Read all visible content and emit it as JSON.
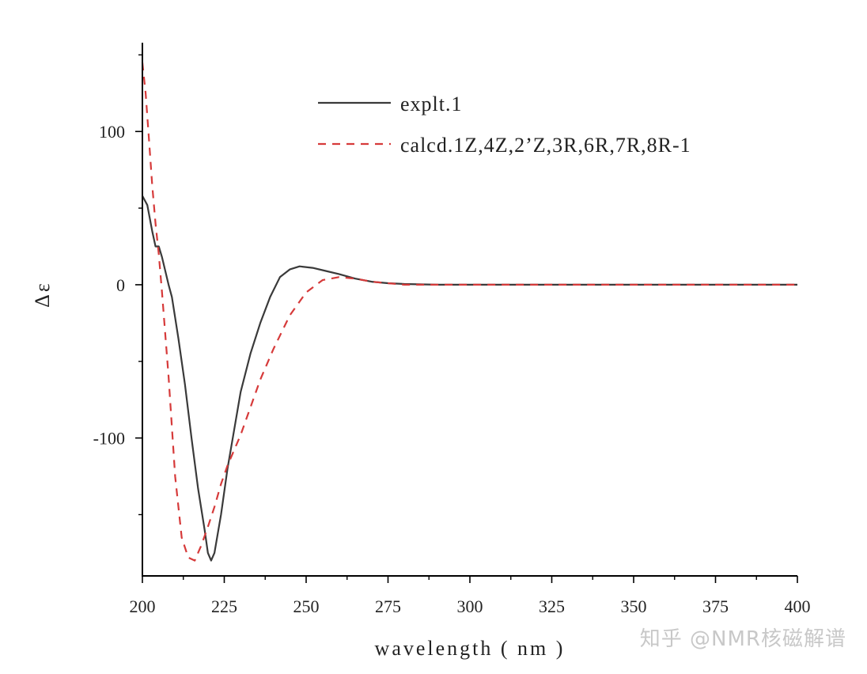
{
  "chart_data": {
    "type": "line",
    "xlabel": "wavelength ( nm )",
    "ylabel": "Δε",
    "xlim": [
      200,
      400
    ],
    "ylim": [
      -190,
      160
    ],
    "xticks": [
      200,
      225,
      250,
      275,
      300,
      325,
      350,
      375,
      400
    ],
    "yticks": [
      -100,
      0,
      100
    ],
    "grid": false,
    "legend_position": "top-right",
    "series": [
      {
        "name": "explt.1",
        "color": "#3a3a3a",
        "dash": "solid",
        "x": [
          200,
          201.5,
          203,
          204,
          205,
          206,
          208,
          209,
          211,
          213,
          215,
          217,
          219,
          220,
          221,
          222,
          224,
          226,
          228,
          230,
          233,
          236,
          239,
          242,
          245,
          248,
          252,
          256,
          260,
          265,
          270,
          275,
          280,
          290,
          300,
          320,
          350,
          400
        ],
        "y": [
          58,
          52,
          35,
          25,
          25,
          18,
          0,
          -8,
          -35,
          -65,
          -100,
          -133,
          -160,
          -175,
          -180,
          -175,
          -150,
          -120,
          -95,
          -70,
          -45,
          -25,
          -8,
          5,
          10,
          12,
          11,
          9,
          7,
          4,
          2,
          1,
          0.5,
          0,
          0,
          0,
          0,
          0
        ]
      },
      {
        "name": "calcd.1Z,4Z,2’Z,3R,6R,7R,8R-1",
        "color": "#d63a3a",
        "dash": "dashed",
        "x": [
          200,
          201,
          202,
          203,
          204,
          205,
          206,
          208,
          210,
          212,
          214,
          216,
          218,
          220,
          222,
          224,
          226,
          228,
          230,
          233,
          236,
          240,
          245,
          250,
          255,
          260,
          265,
          270,
          275,
          280,
          290,
          300,
          320,
          350,
          400
        ],
        "y": [
          145,
          125,
          95,
          65,
          40,
          20,
          -5,
          -60,
          -125,
          -165,
          -178,
          -180,
          -170,
          -158,
          -145,
          -130,
          -118,
          -108,
          -98,
          -80,
          -62,
          -42,
          -20,
          -5,
          3,
          5,
          4,
          2,
          1,
          0,
          0,
          0,
          0,
          0,
          0
        ]
      }
    ]
  },
  "legend": {
    "items": [
      {
        "label": "explt.1"
      },
      {
        "label": "calcd.1Z,4Z,2’Z,3R,6R,7R,8R-1"
      }
    ]
  },
  "watermark": {
    "text": "知乎 @NMR核磁解谱"
  }
}
